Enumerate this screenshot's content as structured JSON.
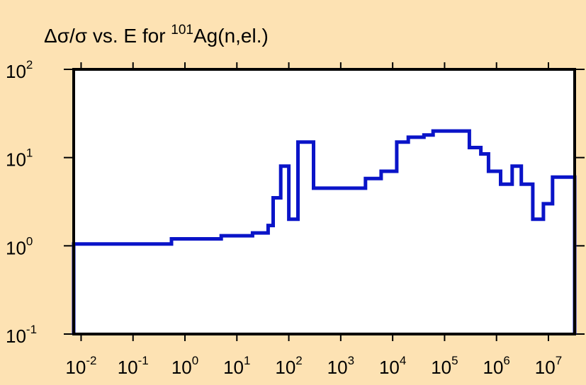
{
  "chart_data": {
    "type": "line",
    "step": true,
    "title": {
      "symbol_prefix": "Δσ/σ vs. E for ",
      "mass_number": "101",
      "reaction": "Ag(n,el.)"
    },
    "xlabel": "",
    "ylabel": "",
    "xscale": "log",
    "yscale": "log",
    "xlim": [
      0.0072,
      32000000.0
    ],
    "ylim": [
      0.1,
      100
    ],
    "grid": false,
    "x_ticks": [
      {
        "base": "10",
        "exp": "-2"
      },
      {
        "base": "10",
        "exp": "-1"
      },
      {
        "base": "10",
        "exp": "0"
      },
      {
        "base": "10",
        "exp": "1"
      },
      {
        "base": "10",
        "exp": "2"
      },
      {
        "base": "10",
        "exp": "3"
      },
      {
        "base": "10",
        "exp": "4"
      },
      {
        "base": "10",
        "exp": "5"
      },
      {
        "base": "10",
        "exp": "6"
      },
      {
        "base": "10",
        "exp": "7"
      }
    ],
    "y_ticks": [
      {
        "base": "10",
        "exp": "-1"
      },
      {
        "base": "10",
        "exp": "0"
      },
      {
        "base": "10",
        "exp": "1"
      },
      {
        "base": "10",
        "exp": "2"
      }
    ],
    "series": [
      {
        "color": "#0a14c8",
        "edges": [
          0.0072,
          0.1,
          0.55,
          5,
          20,
          40,
          50,
          70,
          100,
          150,
          300,
          3000,
          6000,
          12000,
          20000,
          40000,
          60000,
          200000,
          300000,
          500000,
          700000,
          1200000,
          2000000,
          3000000,
          5000000,
          8000000,
          12000000,
          32000000
        ],
        "values": [
          1.05,
          1.05,
          1.2,
          1.3,
          1.4,
          1.7,
          3.5,
          8,
          2,
          15,
          4.5,
          5.8,
          7,
          15,
          17,
          18,
          20,
          20,
          13,
          11,
          7,
          5,
          8,
          5,
          2,
          3,
          6
        ]
      }
    ]
  }
}
